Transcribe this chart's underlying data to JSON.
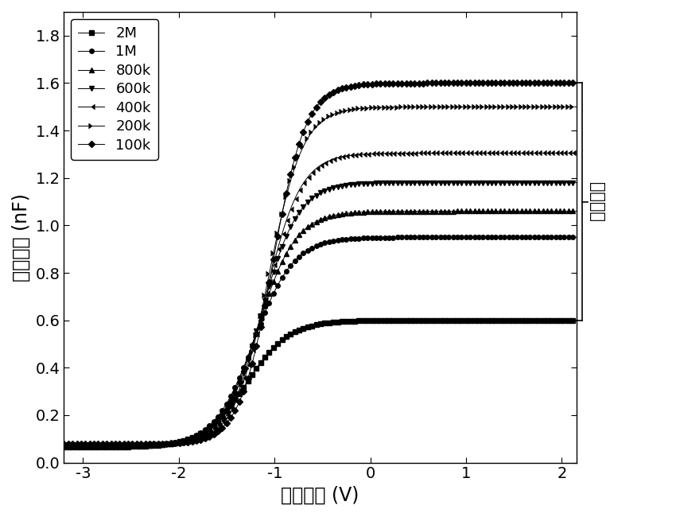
{
  "xlabel": "偏置电压 (V)",
  "ylabel": "并联电容 (nF)",
  "xlim": [
    -3.2,
    2.15
  ],
  "ylim": [
    0.0,
    1.9
  ],
  "xticks": [
    -3,
    -2,
    -1,
    0,
    1,
    2
  ],
  "yticks": [
    0.0,
    0.2,
    0.4,
    0.6,
    0.8,
    1.0,
    1.2,
    1.4,
    1.6,
    1.8
  ],
  "annotation_text": "频率色散",
  "series": [
    {
      "label": "2M",
      "C_min": 0.065,
      "C_max": 0.6,
      "V_t": -1.3,
      "k": 4.5,
      "marker": "s",
      "markersize": 4
    },
    {
      "label": "1M",
      "C_min": 0.068,
      "C_max": 0.95,
      "V_t": -1.22,
      "k": 4.8,
      "marker": "o",
      "markersize": 4
    },
    {
      "label": "800k",
      "C_min": 0.07,
      "C_max": 1.06,
      "V_t": -1.18,
      "k": 5.0,
      "marker": "^",
      "markersize": 4
    },
    {
      "label": "600k",
      "C_min": 0.072,
      "C_max": 1.18,
      "V_t": -1.14,
      "k": 5.2,
      "marker": "v",
      "markersize": 4
    },
    {
      "label": "400k",
      "C_min": 0.074,
      "C_max": 1.305,
      "V_t": -1.1,
      "k": 5.4,
      "marker": 4,
      "markersize": 4
    },
    {
      "label": "200k",
      "C_min": 0.076,
      "C_max": 1.5,
      "V_t": -1.06,
      "k": 5.6,
      "marker": 5,
      "markersize": 4
    },
    {
      "label": "100k",
      "C_min": 0.078,
      "C_max": 1.6,
      "V_t": -1.02,
      "k": 5.8,
      "marker": "D",
      "markersize": 4
    }
  ],
  "background_color": "#ffffff",
  "font_size_labels": 17,
  "font_size_ticks": 14,
  "font_size_legend": 13,
  "font_size_annotation": 15,
  "bracket_y_top": 1.6,
  "bracket_y_bot": 0.6,
  "color": "#000000"
}
